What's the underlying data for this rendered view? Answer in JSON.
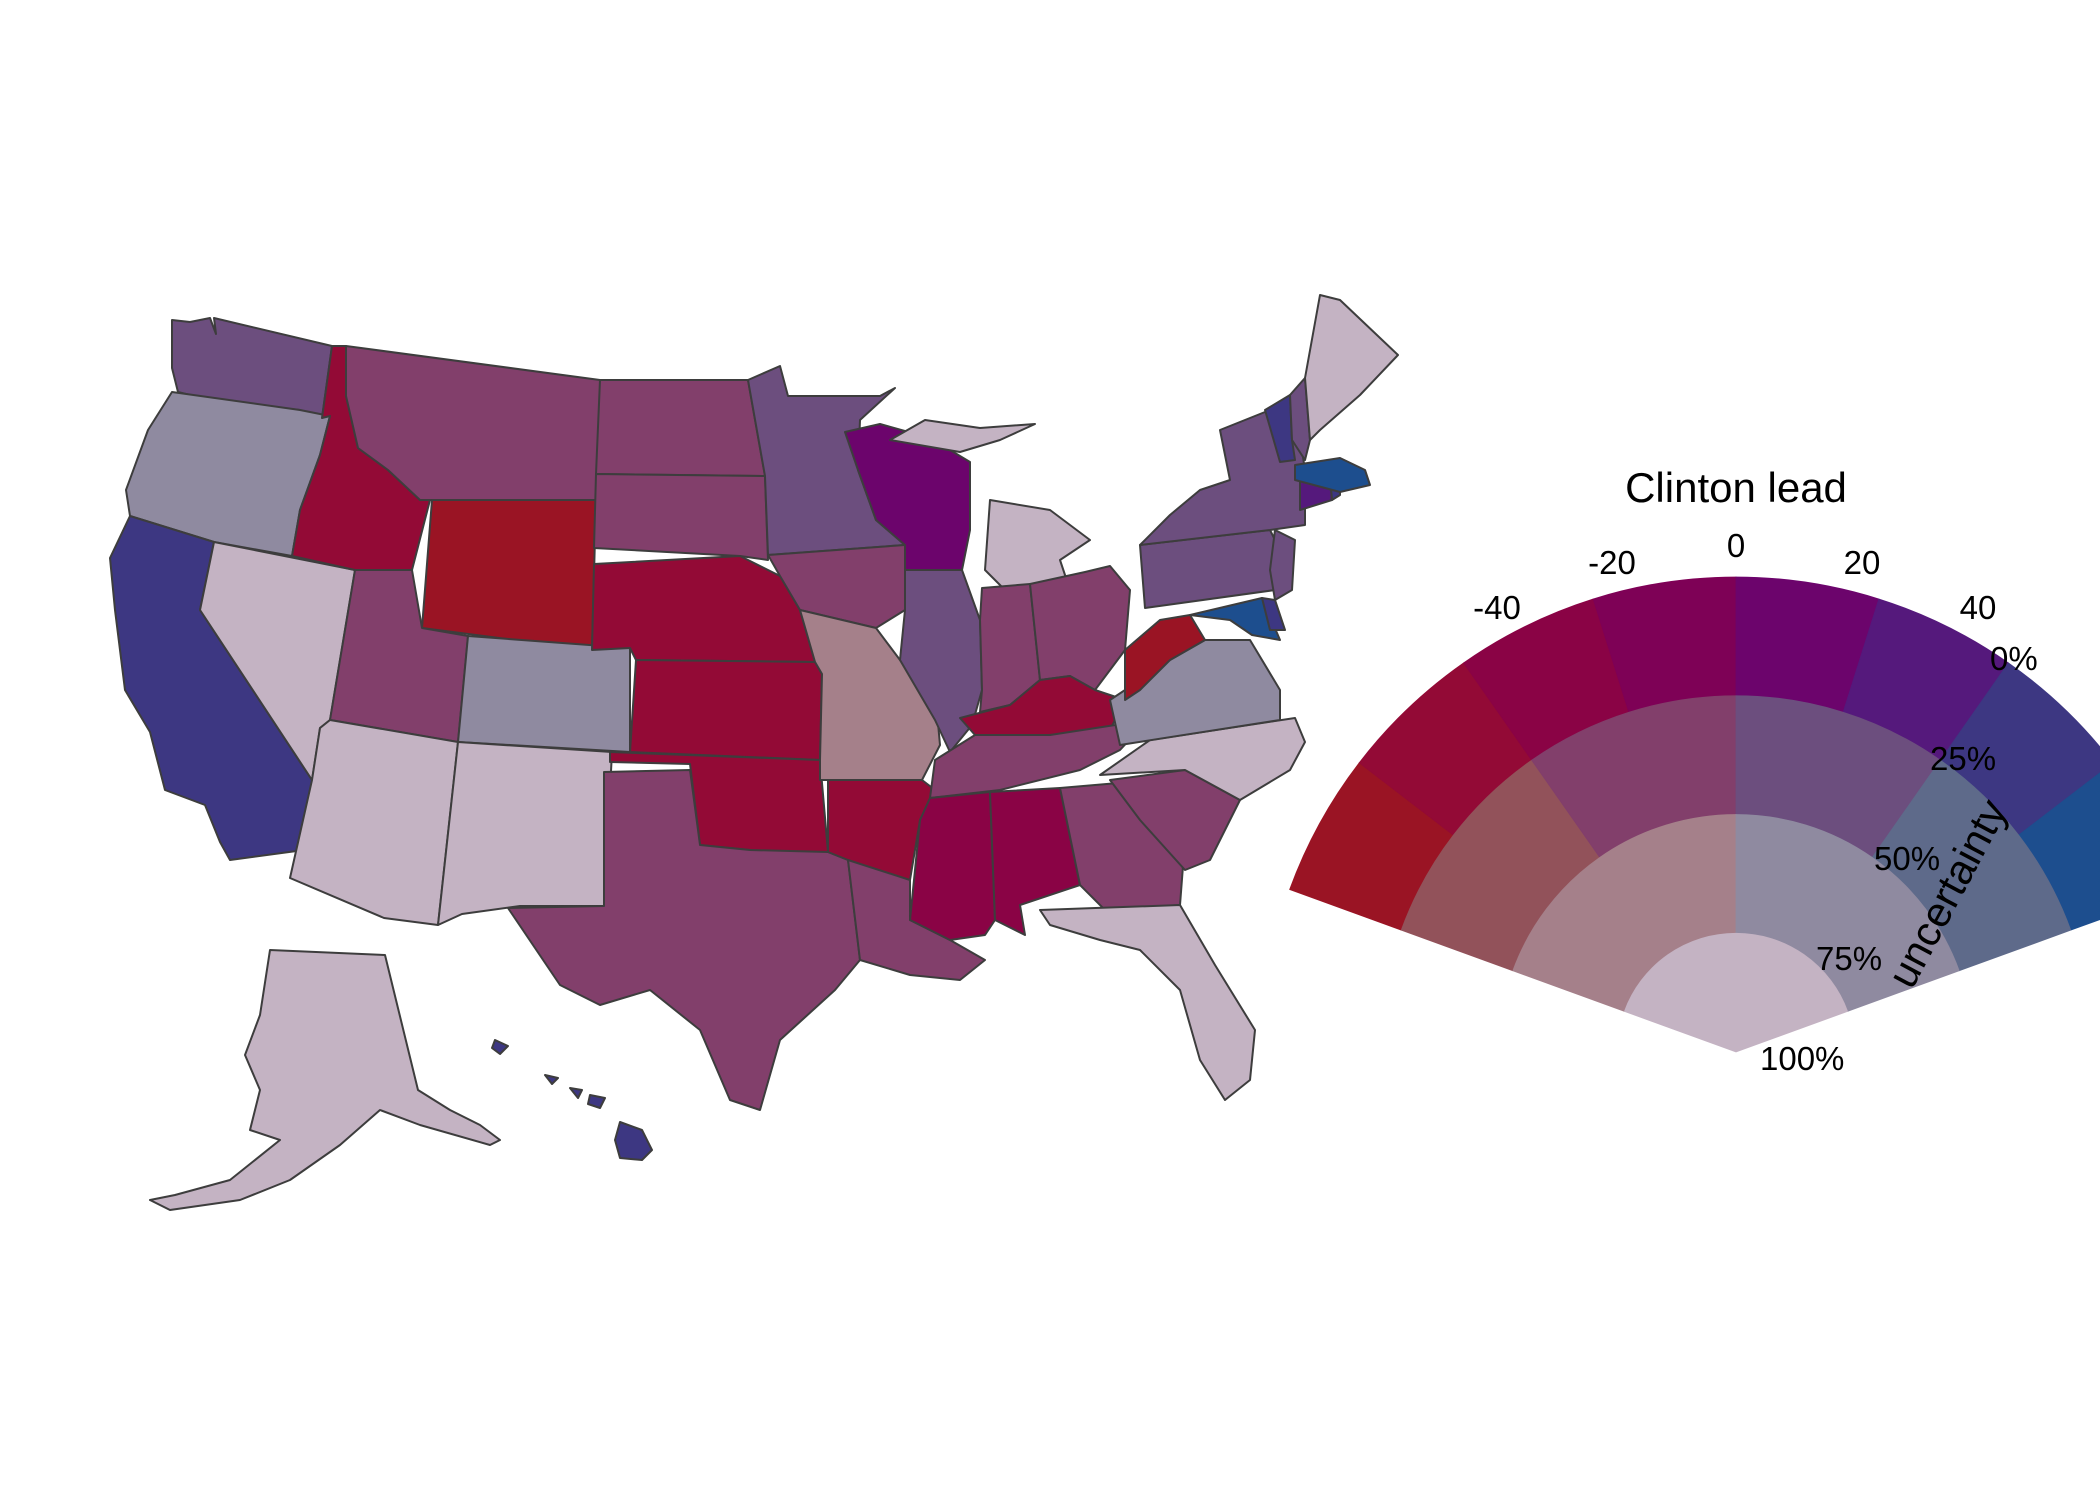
{
  "legend": {
    "title": "Clinton lead",
    "lead_ticks": [
      "-40",
      "-20",
      "0",
      "20",
      "40"
    ],
    "uncertainty_label": "uncertainty",
    "uncertainty_ticks": [
      "0%",
      "25%",
      "50%",
      "75%",
      "100%"
    ],
    "palette": [
      [
        "#9a1424",
        "#930a36",
        "#8a0345",
        "#7e0156",
        "#6c046c",
        "#55197c",
        "#3d3782",
        "#1d4e8e"
      ],
      [
        "#92525a",
        "#823f6b",
        "#6c4e7e",
        "#5e6a8a"
      ],
      [
        "#a5808a",
        "#8f8aa0"
      ],
      [
        "#c4b3c3"
      ]
    ]
  },
  "states": [
    {
      "id": "WA",
      "color": "#6c4e7e"
    },
    {
      "id": "OR",
      "color": "#8f8aa0"
    },
    {
      "id": "CA",
      "color": "#3d3782"
    },
    {
      "id": "NV",
      "color": "#c4b3c3"
    },
    {
      "id": "ID",
      "color": "#930a36"
    },
    {
      "id": "MT",
      "color": "#823f6b"
    },
    {
      "id": "WY",
      "color": "#9a1424"
    },
    {
      "id": "UT",
      "color": "#823f6b"
    },
    {
      "id": "AZ",
      "color": "#c4b3c3"
    },
    {
      "id": "CO",
      "color": "#8f8aa0"
    },
    {
      "id": "NM",
      "color": "#c4b3c3"
    },
    {
      "id": "ND",
      "color": "#823f6b"
    },
    {
      "id": "SD",
      "color": "#823f6b"
    },
    {
      "id": "NE",
      "color": "#930a36"
    },
    {
      "id": "KS",
      "color": "#930a36"
    },
    {
      "id": "OK",
      "color": "#930a36"
    },
    {
      "id": "TX",
      "color": "#823f6b"
    },
    {
      "id": "MN",
      "color": "#6c4e7e"
    },
    {
      "id": "IA",
      "color": "#823f6b"
    },
    {
      "id": "MO",
      "color": "#a5808a"
    },
    {
      "id": "AR",
      "color": "#930a36"
    },
    {
      "id": "LA",
      "color": "#823f6b"
    },
    {
      "id": "WI",
      "color": "#6c046c"
    },
    {
      "id": "IL",
      "color": "#6c4e7e"
    },
    {
      "id": "MI",
      "color": "#c4b3c3"
    },
    {
      "id": "IN",
      "color": "#823f6b"
    },
    {
      "id": "OH",
      "color": "#823f6b"
    },
    {
      "id": "KY",
      "color": "#930a36"
    },
    {
      "id": "TN",
      "color": "#823f6b"
    },
    {
      "id": "MS",
      "color": "#8a0345"
    },
    {
      "id": "AL",
      "color": "#8a0345"
    },
    {
      "id": "GA",
      "color": "#823f6b"
    },
    {
      "id": "FL",
      "color": "#c4b3c3"
    },
    {
      "id": "SC",
      "color": "#823f6b"
    },
    {
      "id": "NC",
      "color": "#c4b3c3"
    },
    {
      "id": "VA",
      "color": "#8f8aa0"
    },
    {
      "id": "WV",
      "color": "#9a1424"
    },
    {
      "id": "PA",
      "color": "#6c4e7e"
    },
    {
      "id": "NY",
      "color": "#6c4e7e"
    },
    {
      "id": "NJ",
      "color": "#6c4e7e"
    },
    {
      "id": "MD",
      "color": "#1d4e8e"
    },
    {
      "id": "DE",
      "color": "#3d3782"
    },
    {
      "id": "CT",
      "color": "#55197c"
    },
    {
      "id": "RI",
      "color": "#3d3782"
    },
    {
      "id": "MA",
      "color": "#1d4e8e"
    },
    {
      "id": "VT",
      "color": "#3d3782"
    },
    {
      "id": "NH",
      "color": "#6c4e7e"
    },
    {
      "id": "ME",
      "color": "#c4b3c3"
    },
    {
      "id": "AK",
      "color": "#c4b3c3"
    },
    {
      "id": "HI",
      "color": "#3d3782"
    }
  ]
}
